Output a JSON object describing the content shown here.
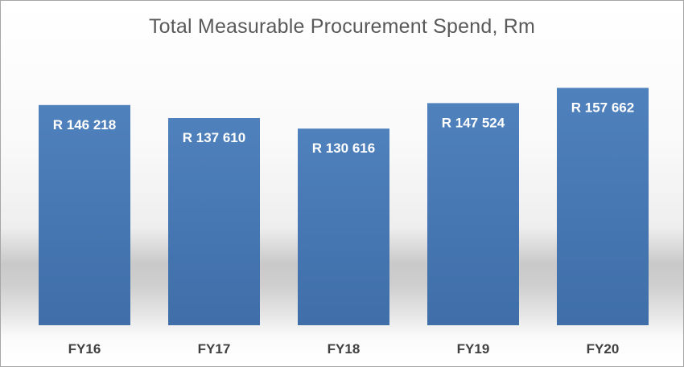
{
  "chart_data": {
    "type": "bar",
    "title": "Total Measurable Procurement Spend, Rm",
    "xlabel": "",
    "ylabel": "",
    "categories": [
      "FY16",
      "FY17",
      "FY18",
      "FY19",
      "FY20"
    ],
    "values": [
      146218,
      137610,
      130616,
      147524,
      157662
    ],
    "data_labels": [
      "R 146 218",
      "R 137 610",
      "R 130 616",
      "R 147 524",
      "R 157 662"
    ],
    "ylim": [
      0,
      160000
    ],
    "grid": false,
    "legend": "none",
    "colors": {
      "bar": "#4a7ebb",
      "bar_top": "#4f81bd",
      "bar_bottom": "#3f6ea8",
      "title": "#595959",
      "tick": "#404040",
      "data_label": "#ffffff"
    }
  }
}
